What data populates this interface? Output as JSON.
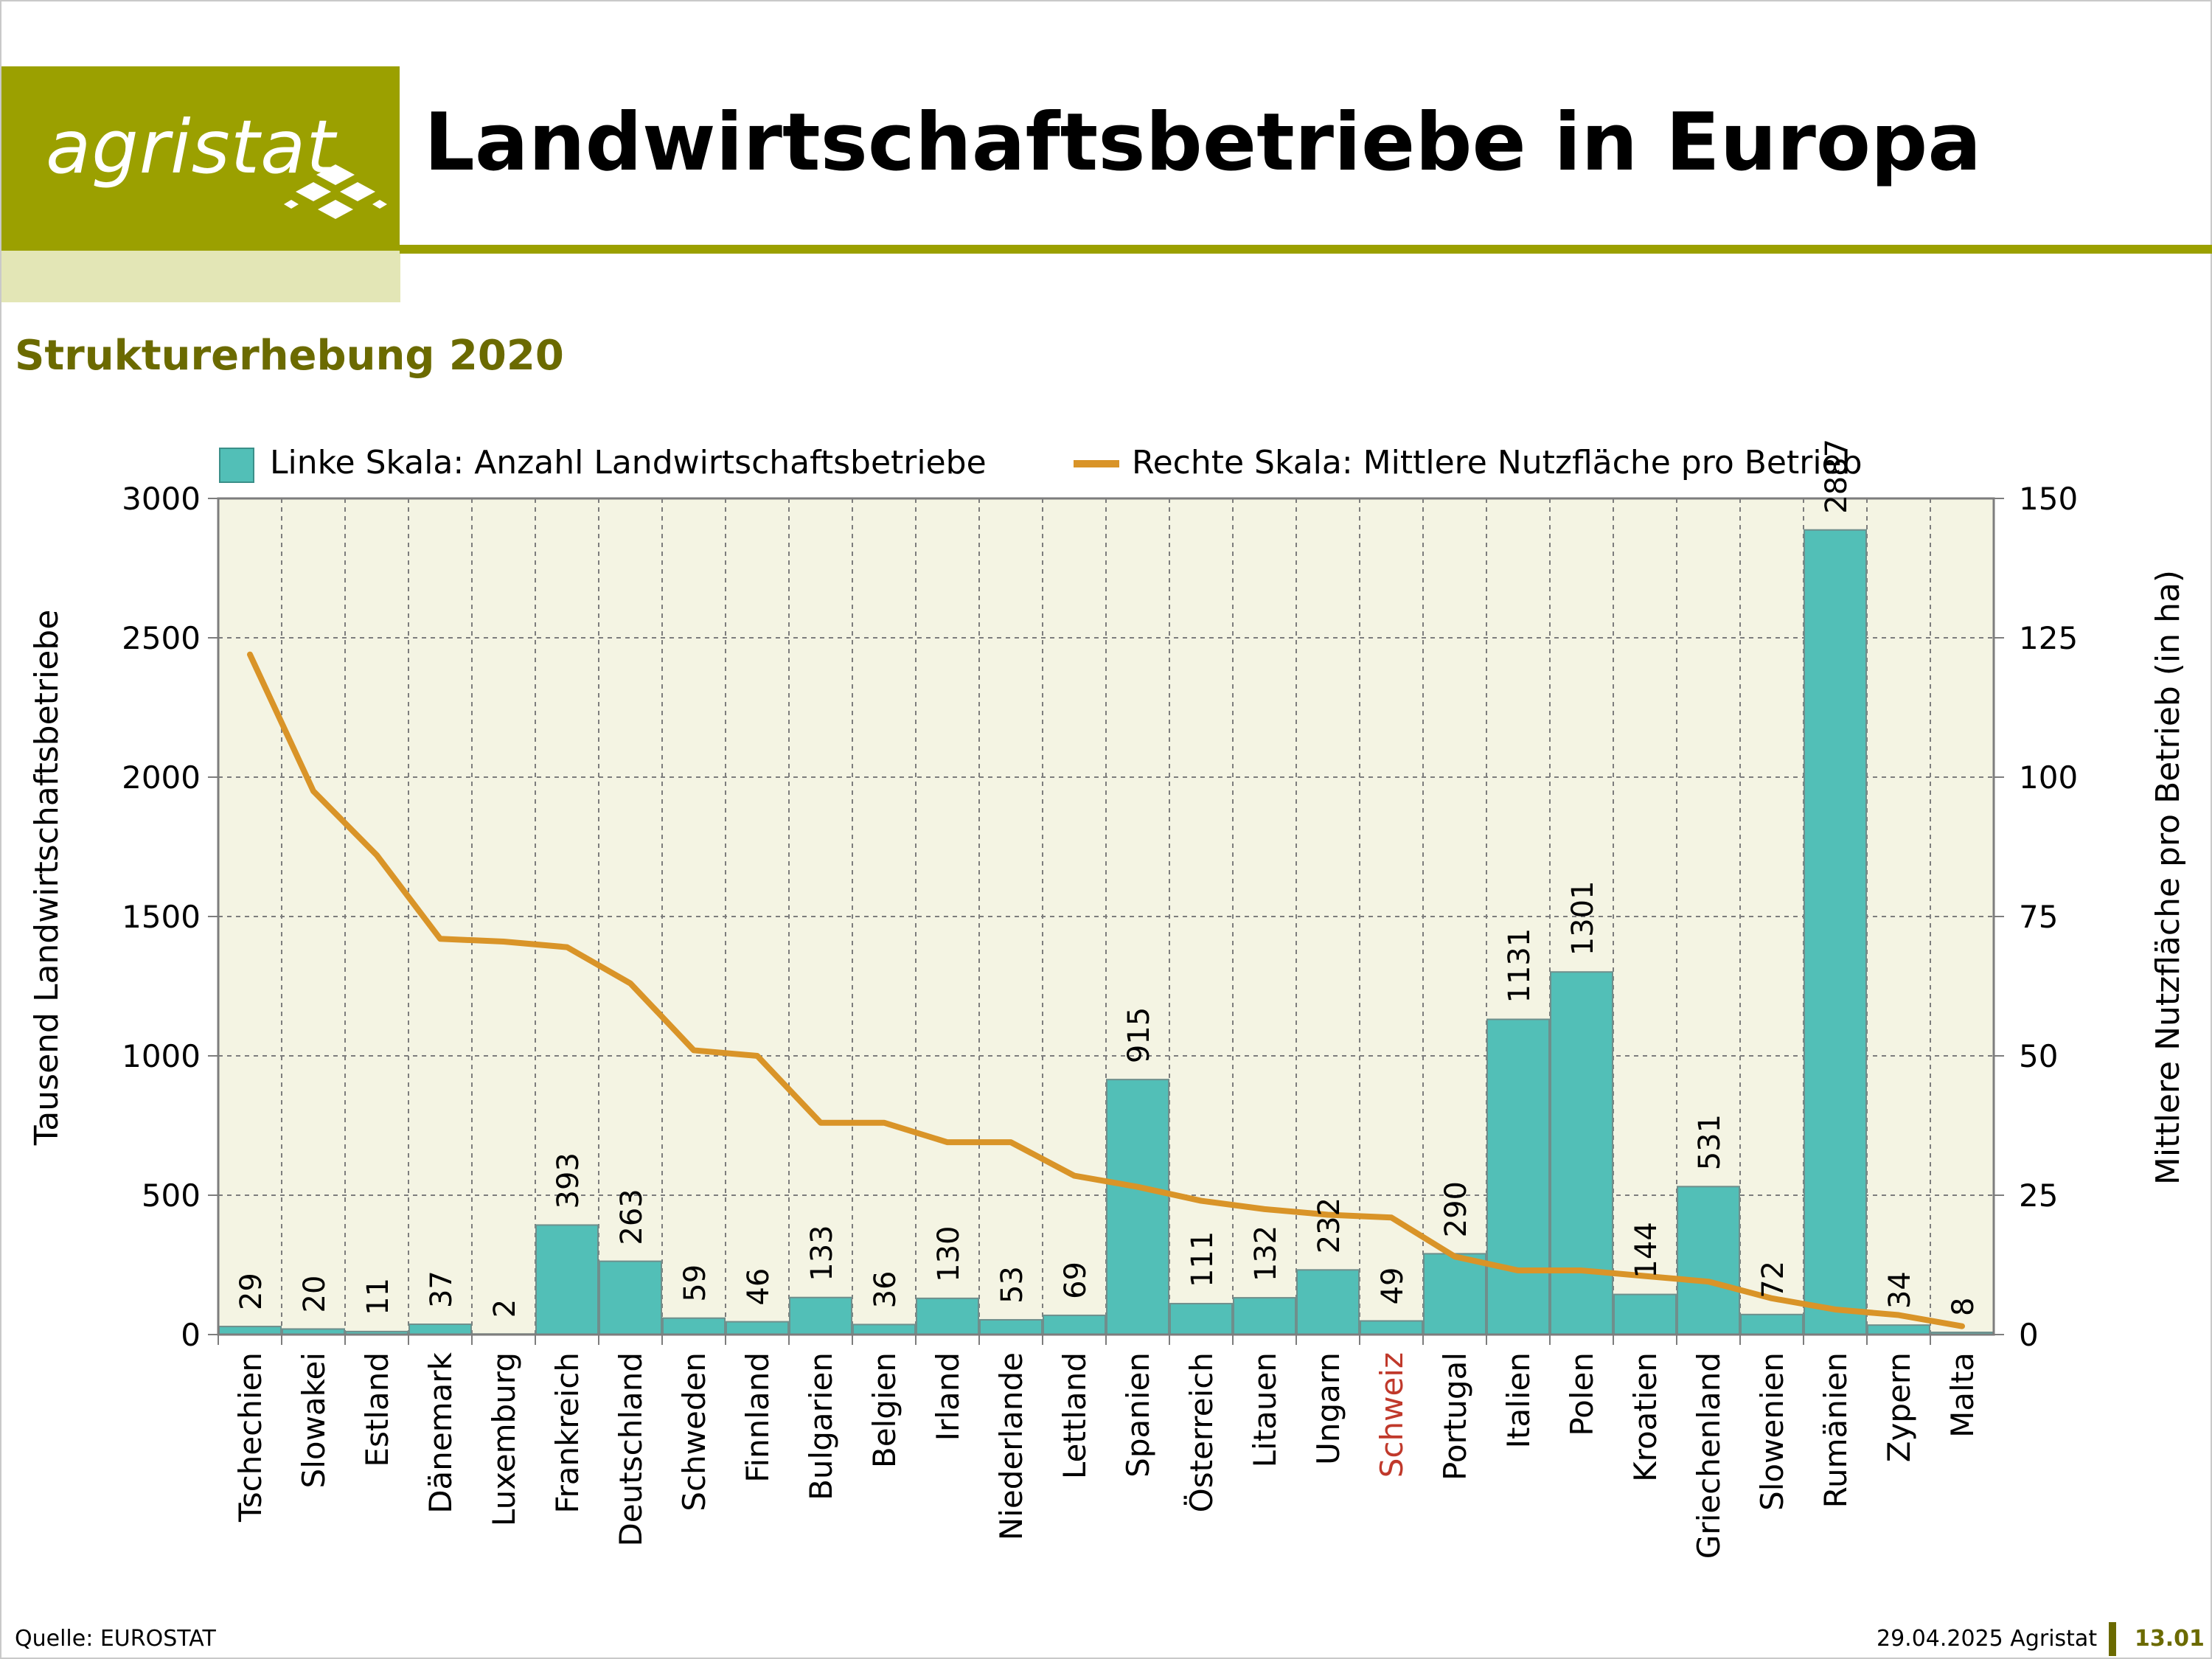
{
  "logo": {
    "text": "agristat",
    "icon": "diamond-pattern-icon"
  },
  "header": {
    "title": "Landwirtschaftsbetriebe in Europa"
  },
  "subtitle": "Strukturerhebung 2020",
  "footer": {
    "source": "Quelle: EUROSTAT",
    "date_brand": "29.04.2025 Agristat",
    "page": "13.01"
  },
  "colors": {
    "brand": "#9ba000",
    "brand_light": "#e3e6b6",
    "bar": "#52bfb7",
    "line": "#d99428",
    "plot_bg": "#f4f4e3",
    "highlight_label": "#c0392b"
  },
  "chart_data": {
    "type": "bar",
    "legend": {
      "placement": "top",
      "bars": "Linke Skala: Anzahl Landwirtschaftsbetriebe",
      "line": "Rechte Skala: Mittlere Nutzfläche pro Betrieb"
    },
    "ylabel": "Tausend Landwirtschaftsbetriebe",
    "y2label": "Mittlere Nutzfläche pro Betrieb (in ha)",
    "ylim": [
      0,
      3000
    ],
    "y2lim": [
      0,
      150
    ],
    "yticks": [
      0,
      500,
      1000,
      1500,
      2000,
      2500,
      3000
    ],
    "y2ticks": [
      0,
      25,
      50,
      75,
      100,
      125,
      150
    ],
    "grid": true,
    "highlight_category": "Schweiz",
    "categories": [
      "Tschechien",
      "Slowakei",
      "Estland",
      "Dänemark",
      "Luxemburg",
      "Frankreich",
      "Deutschland",
      "Schweden",
      "Finnland",
      "Bulgarien",
      "Belgien",
      "Irland",
      "Niederlande",
      "Lettland",
      "Spanien",
      "Österreich",
      "Litauen",
      "Ungarn",
      "Schweiz",
      "Portugal",
      "Italien",
      "Polen",
      "Kroatien",
      "Griechenland",
      "Slowenien",
      "Rumänien",
      "Zypern",
      "Malta"
    ],
    "series": [
      {
        "name": "Linke Skala: Anzahl Landwirtschaftsbetriebe",
        "type": "bar",
        "axis": "left",
        "values": [
          29,
          20,
          11,
          37,
          2,
          393,
          263,
          59,
          46,
          133,
          36,
          130,
          53,
          69,
          915,
          111,
          132,
          232,
          49,
          290,
          1131,
          1301,
          144,
          531,
          72,
          2887,
          34,
          8
        ],
        "labels": [
          "29",
          "20",
          "11",
          "37",
          "2",
          "393",
          "263",
          "59",
          "46",
          "133",
          "36",
          "130",
          "53",
          "69",
          "915",
          "111",
          "132",
          "232",
          "49",
          "290",
          "1131",
          "1301",
          "144",
          "531",
          "72",
          "2887",
          "34",
          "8"
        ]
      },
      {
        "name": "Rechte Skala: Mittlere Nutzfläche pro Betrieb",
        "type": "line",
        "axis": "right",
        "values": [
          122,
          97.5,
          86,
          71,
          70.5,
          69.5,
          63,
          51,
          50,
          38,
          38,
          34.5,
          34.5,
          28.5,
          26.5,
          24,
          22.5,
          21.5,
          21,
          14,
          11.5,
          11.5,
          10.5,
          9.5,
          6.5,
          4.5,
          3.5,
          1.5
        ]
      }
    ]
  }
}
